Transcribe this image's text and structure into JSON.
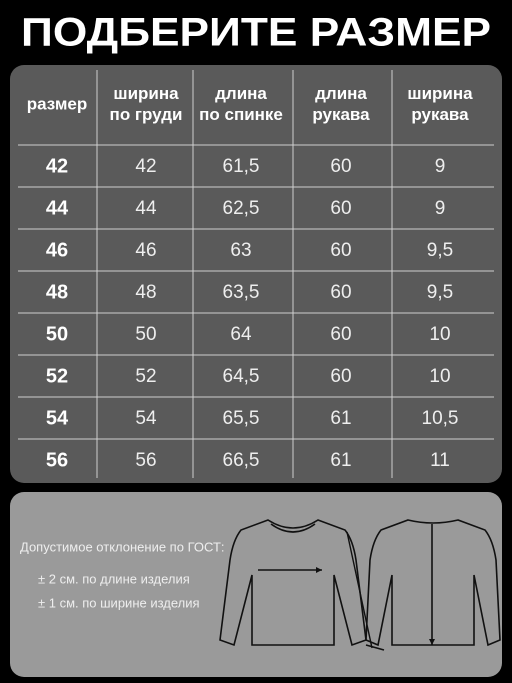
{
  "header": {
    "title": "ПОДБЕРИТЕ РАЗМЕР"
  },
  "table": {
    "columns": [
      [
        "размер"
      ],
      [
        "ширина",
        "по груди"
      ],
      [
        "длина",
        "по спинке"
      ],
      [
        "длина",
        "рукава"
      ],
      [
        "ширина",
        "рукава"
      ]
    ],
    "rows": [
      [
        "42",
        "42",
        "61,5",
        "60",
        "9"
      ],
      [
        "44",
        "44",
        "62,5",
        "60",
        "9"
      ],
      [
        "46",
        "46",
        "63",
        "60",
        "9,5"
      ],
      [
        "48",
        "48",
        "63,5",
        "60",
        "9,5"
      ],
      [
        "50",
        "50",
        "64",
        "60",
        "10"
      ],
      [
        "52",
        "52",
        "64,5",
        "60",
        "10"
      ],
      [
        "54",
        "54",
        "65,5",
        "61",
        "10,5"
      ],
      [
        "56",
        "56",
        "66,5",
        "61",
        "11"
      ]
    ]
  },
  "note": {
    "heading": "Допустимое отклонение по ГОСТ:",
    "lines": [
      "±  2 см. по длине изделия",
      "±  1 см. по ширине изделия"
    ]
  }
}
